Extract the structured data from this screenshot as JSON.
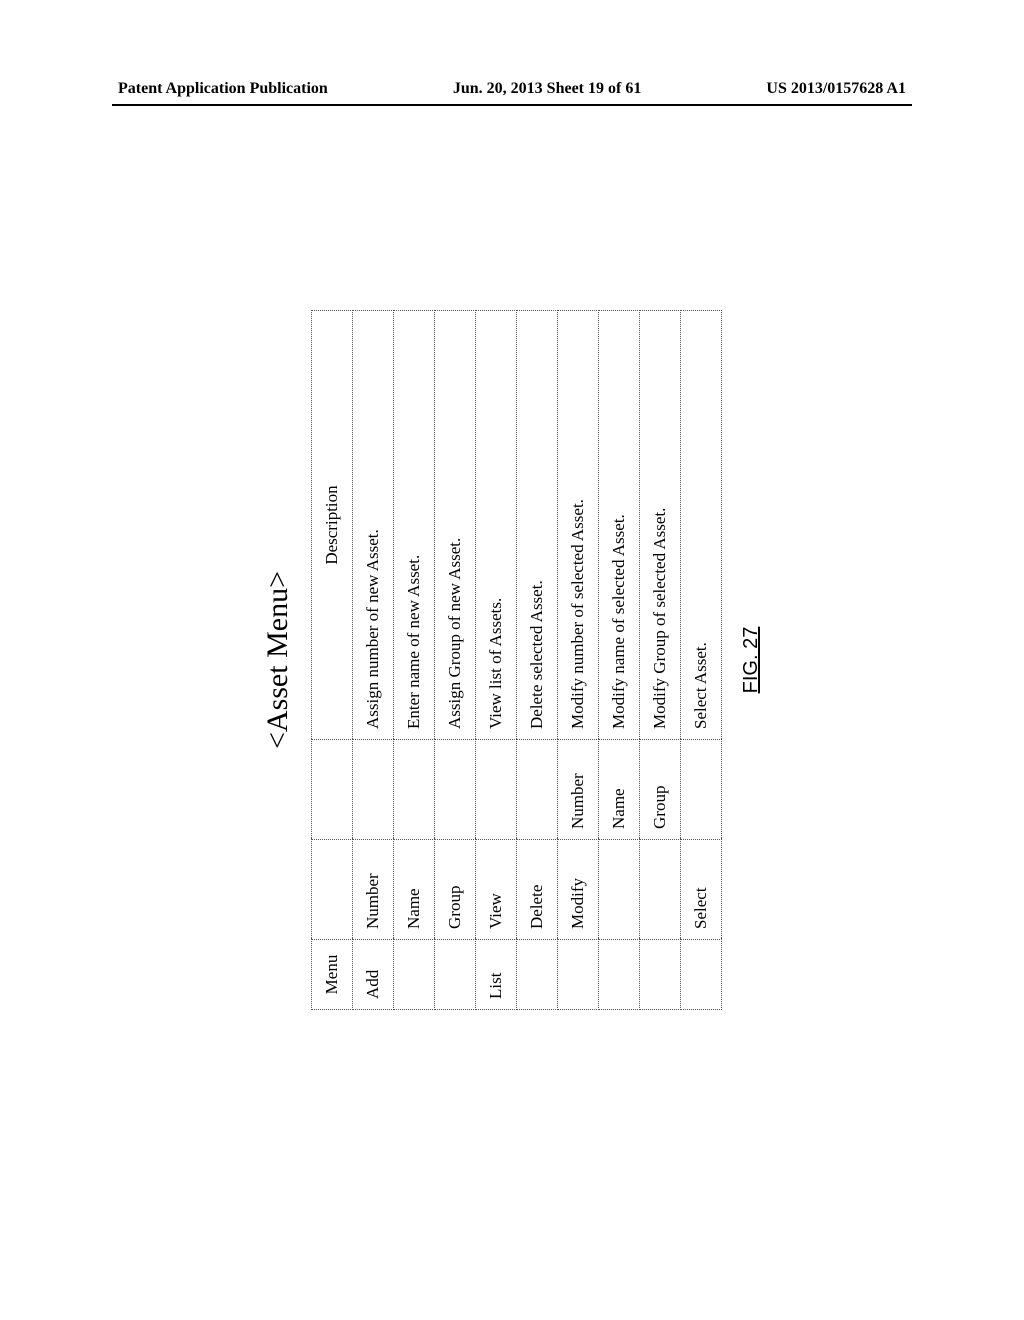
{
  "header": {
    "left": "Patent Application Publication",
    "center": "Jun. 20, 2013  Sheet 19 of 61",
    "right": "US 2013/0157628 A1"
  },
  "figure": {
    "title": "<Asset Menu>",
    "caption": "FIG. 27",
    "columns": {
      "menu": "Menu",
      "sub1": "",
      "sub2": "",
      "desc": "Description"
    },
    "rows": [
      {
        "menu": "Add",
        "sub1": "Number",
        "sub2": "",
        "desc": "Assign number of new Asset."
      },
      {
        "menu": "",
        "sub1": "Name",
        "sub2": "",
        "desc": "Enter name of new Asset."
      },
      {
        "menu": "",
        "sub1": "Group",
        "sub2": "",
        "desc": "Assign Group of new  Asset."
      },
      {
        "menu": "List",
        "sub1": "View",
        "sub2": "",
        "desc": "View list of Assets."
      },
      {
        "menu": "",
        "sub1": "Delete",
        "sub2": "",
        "desc": "Delete selected Asset."
      },
      {
        "menu": "",
        "sub1": "Modify",
        "sub2": "Number",
        "desc": "Modify number of selected Asset."
      },
      {
        "menu": "",
        "sub1": "",
        "sub2": "Name",
        "desc": "Modify name of selected Asset."
      },
      {
        "menu": "",
        "sub1": "",
        "sub2": "Group",
        "desc": "Modify Group of selected   Asset."
      },
      {
        "menu": "",
        "sub1": "Select",
        "sub2": "",
        "desc": "Select Asset."
      }
    ]
  }
}
